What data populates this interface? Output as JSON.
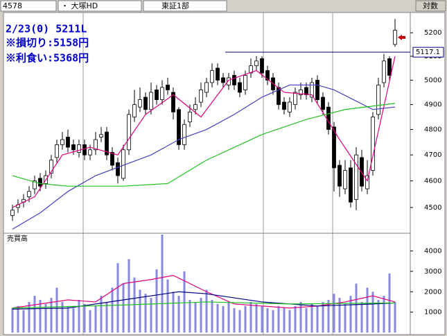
{
  "header": {
    "code": "4578",
    "name": "・ 大塚HD",
    "market": "東証1部",
    "scale": "対数"
  },
  "chart_data": [
    {
      "type": "candlestick",
      "log": true,
      "ylim": [
        4405,
        5288
      ],
      "yticks": [
        4500,
        4600,
        4700,
        4800,
        4900,
        5000,
        5100,
        5200
      ],
      "annotations": [
        "2/23(0) 5211L",
        "※損切り:5158円",
        "※利食い:5368円"
      ],
      "ref_line": 5117.1,
      "up_color": "#ffffff",
      "down_color": "#000000",
      "open": [
        4470,
        4500,
        4520,
        4540,
        4570,
        4610,
        4590,
        4630,
        4690,
        4740,
        4770,
        4740,
        4710,
        4740,
        4700,
        4720,
        4770,
        4790,
        4710,
        4670,
        4610,
        4720,
        4850,
        4890,
        4930,
        4880,
        4960,
        4920,
        4980,
        4950,
        4880,
        4740,
        4830,
        4880,
        4910,
        4950,
        4990,
        5050,
        5010,
        4980,
        5020,
        4990,
        4960,
        5030,
        5060,
        5090,
        5040,
        5010,
        4970,
        4910,
        4870,
        4900,
        4940,
        4970,
        4930,
        5000,
        4930,
        4890,
        4810,
        4660,
        4570,
        4650,
        4530,
        4690,
        4570,
        4640,
        4860,
        4990,
        5090,
        5150
      ],
      "high": [
        4510,
        4530,
        4550,
        4580,
        4620,
        4630,
        4640,
        4700,
        4760,
        4790,
        4800,
        4760,
        4760,
        4760,
        4740,
        4790,
        4810,
        4810,
        4730,
        4690,
        4740,
        4880,
        4960,
        4970,
        4950,
        4990,
        4980,
        5000,
        5010,
        4970,
        4890,
        4840,
        4900,
        4930,
        4990,
        5010,
        5070,
        5070,
        5030,
        5030,
        5040,
        5010,
        5040,
        5090,
        5100,
        5100,
        5060,
        5030,
        4990,
        4930,
        4930,
        4970,
        4990,
        4990,
        5010,
        5020,
        4950,
        4910,
        4830,
        4680,
        4680,
        4680,
        4730,
        4720,
        4680,
        4870,
        5010,
        5110,
        5100,
        5260
      ],
      "low": [
        4450,
        4480,
        4500,
        4520,
        4550,
        4560,
        4570,
        4610,
        4670,
        4720,
        4710,
        4700,
        4690,
        4680,
        4680,
        4700,
        4750,
        4680,
        4640,
        4590,
        4600,
        4700,
        4830,
        4870,
        4860,
        4860,
        4900,
        4900,
        4940,
        4840,
        4720,
        4720,
        4810,
        4860,
        4890,
        4930,
        4970,
        4980,
        4970,
        4960,
        4960,
        4930,
        4940,
        5010,
        5040,
        5010,
        4980,
        4940,
        4880,
        4860,
        4850,
        4880,
        4920,
        4920,
        4910,
        4900,
        4860,
        4780,
        4560,
        4540,
        4550,
        4500,
        4490,
        4560,
        4550,
        4620,
        4840,
        4970,
        5000,
        5140
      ],
      "close": [
        4490,
        4510,
        4530,
        4560,
        4600,
        4580,
        4620,
        4680,
        4740,
        4760,
        4730,
        4720,
        4740,
        4700,
        4720,
        4760,
        4780,
        4700,
        4660,
        4620,
        4720,
        4860,
        4900,
        4920,
        4880,
        4950,
        4920,
        4970,
        4960,
        4870,
        4740,
        4820,
        4870,
        4900,
        4960,
        4990,
        5040,
        5000,
        4990,
        5010,
        4980,
        4950,
        5020,
        5060,
        5080,
        5030,
        5000,
        4960,
        4900,
        4880,
        4910,
        4950,
        4960,
        4940,
        4990,
        4920,
        4880,
        4800,
        4650,
        4580,
        4640,
        4520,
        4700,
        4580,
        4620,
        4850,
        4980,
        5080,
        5020,
        5211
      ],
      "series": [
        {
          "color": "#e0007f",
          "x": [
            0,
            4,
            9,
            14,
            19,
            24,
            29,
            34,
            39,
            44,
            49,
            54,
            59,
            64,
            69
          ],
          "values": [
            4500,
            4540,
            4700,
            4730,
            4700,
            4860,
            4940,
            4850,
            5000,
            5040,
            4950,
            4940,
            4760,
            4600,
            5100
          ]
        },
        {
          "color": "#4040c0",
          "x": [
            0,
            5,
            10,
            15,
            20,
            25,
            30,
            35,
            40,
            45,
            50,
            55,
            58,
            65,
            69
          ],
          "values": [
            4420,
            4480,
            4560,
            4620,
            4660,
            4700,
            4760,
            4800,
            4860,
            4930,
            4980,
            4980,
            4960,
            4880,
            4890
          ]
        },
        {
          "color": "#20c020",
          "x": [
            0,
            5,
            10,
            20,
            28,
            35,
            45,
            53,
            60,
            69
          ],
          "values": [
            4620,
            4590,
            4580,
            4580,
            4590,
            4680,
            4780,
            4840,
            4880,
            4905
          ]
        }
      ]
    },
    {
      "type": "bar",
      "title": "売買高",
      "ylim": [
        0,
        4800
      ],
      "yticks": [
        1000,
        2000,
        3000,
        4000
      ],
      "color": "#8888dd",
      "values": [
        1200,
        1300,
        1100,
        1500,
        1800,
        1600,
        1400,
        1700,
        2200,
        1500,
        1300,
        1200,
        1600,
        1400,
        1100,
        1300,
        1800,
        1500,
        2200,
        3400,
        2400,
        3600,
        2700,
        2100,
        1900,
        1700,
        3100,
        4800,
        2600,
        2000,
        1800,
        3000,
        1600,
        1500,
        1700,
        2100,
        1600,
        1400,
        1300,
        1500,
        1200,
        1100,
        1300,
        1500,
        1400,
        1300,
        1200,
        1100,
        1300,
        1200,
        1100,
        1300,
        1500,
        1200,
        1400,
        1300,
        1500,
        1600,
        1900,
        1700,
        1400,
        1800,
        2400,
        1500,
        2200,
        2000,
        1600,
        1800,
        2900,
        1500
      ],
      "series": [
        {
          "color": "#e0007f",
          "x": [
            0,
            5,
            10,
            15,
            20,
            25,
            29,
            35,
            40,
            45,
            50,
            55,
            60,
            65,
            69
          ],
          "values": [
            1200,
            1400,
            1600,
            1500,
            2400,
            2600,
            2800,
            2000,
            1400,
            1300,
            1200,
            1300,
            1500,
            1800,
            1500
          ]
        },
        {
          "color": "#000080",
          "x": [
            0,
            10,
            20,
            30,
            35,
            45,
            55,
            65,
            69
          ],
          "values": [
            1150,
            1200,
            1600,
            2000,
            1900,
            1500,
            1300,
            1400,
            1450
          ]
        },
        {
          "color": "#20c020",
          "x": [
            0,
            20,
            35,
            50,
            69
          ],
          "values": [
            1200,
            1350,
            1500,
            1400,
            1450
          ]
        }
      ]
    }
  ]
}
